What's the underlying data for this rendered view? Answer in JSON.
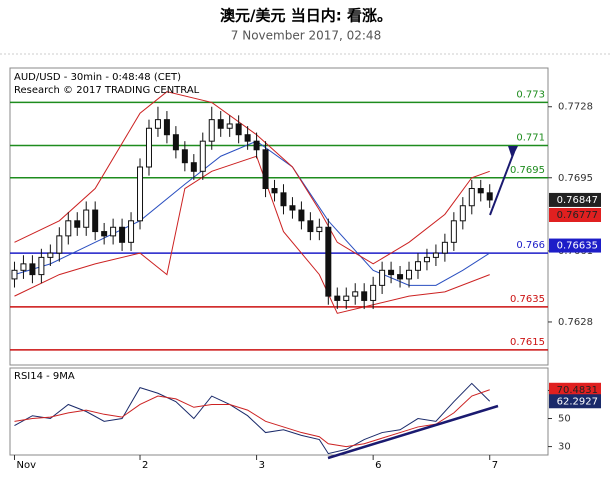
{
  "header": {
    "title": "澳元/美元 当日内: 看涨。",
    "subtitle": "7 November 2017, 02:48"
  },
  "chart_data": [
    {
      "type": "ohlc",
      "title": "AUD/USD - 30min - 0:48:48 (CET)",
      "subtitle": "Research © 2017 TRADING CENTRAL",
      "x": [
        0,
        1,
        2,
        3,
        4,
        5,
        6,
        7,
        8,
        9,
        10,
        11,
        12,
        13,
        14,
        15,
        16,
        17,
        18,
        19,
        20,
        21,
        22,
        23,
        24,
        25,
        26,
        27,
        28,
        29,
        30,
        31,
        32,
        33,
        34,
        35,
        36,
        37,
        38,
        39,
        40,
        41,
        42,
        43,
        44,
        45,
        46,
        47,
        48,
        49,
        50,
        51,
        52,
        53
      ],
      "open": [
        0.7648,
        0.7652,
        0.7655,
        0.765,
        0.7658,
        0.766,
        0.7668,
        0.7675,
        0.7672,
        0.768,
        0.767,
        0.7668,
        0.7672,
        0.7665,
        0.7675,
        0.77,
        0.7718,
        0.7722,
        0.7715,
        0.7708,
        0.7702,
        0.7698,
        0.7712,
        0.7722,
        0.7718,
        0.772,
        0.7715,
        0.7712,
        0.7708,
        0.769,
        0.7688,
        0.7682,
        0.768,
        0.7675,
        0.767,
        0.7672,
        0.764,
        0.7638,
        0.764,
        0.7642,
        0.7638,
        0.7645,
        0.7652,
        0.765,
        0.7648,
        0.7652,
        0.7656,
        0.7658,
        0.766,
        0.7665,
        0.7675,
        0.7682,
        0.769,
        0.7688
      ],
      "high": [
        0.7656,
        0.7659,
        0.7659,
        0.7662,
        0.7664,
        0.7672,
        0.7679,
        0.7679,
        0.7684,
        0.7684,
        0.7674,
        0.7676,
        0.7676,
        0.7679,
        0.7704,
        0.7722,
        0.7728,
        0.7726,
        0.7719,
        0.7712,
        0.7706,
        0.7716,
        0.7728,
        0.7726,
        0.7724,
        0.7724,
        0.7719,
        0.7716,
        0.7712,
        0.7694,
        0.7692,
        0.7686,
        0.7684,
        0.7679,
        0.7676,
        0.7676,
        0.7644,
        0.7644,
        0.7646,
        0.7646,
        0.7649,
        0.7656,
        0.7656,
        0.7654,
        0.7656,
        0.766,
        0.7662,
        0.7664,
        0.7669,
        0.7679,
        0.7686,
        0.7694,
        0.7694,
        0.7692
      ],
      "low": [
        0.7644,
        0.7648,
        0.7646,
        0.7646,
        0.7654,
        0.7656,
        0.7664,
        0.7668,
        0.7668,
        0.7666,
        0.7664,
        0.7664,
        0.7661,
        0.7661,
        0.7671,
        0.7696,
        0.7714,
        0.7711,
        0.7704,
        0.7698,
        0.7694,
        0.7694,
        0.7708,
        0.7714,
        0.7714,
        0.7711,
        0.7708,
        0.7704,
        0.7686,
        0.7684,
        0.7678,
        0.7676,
        0.7671,
        0.7666,
        0.7666,
        0.7636,
        0.7634,
        0.7634,
        0.7636,
        0.7634,
        0.7634,
        0.7641,
        0.7646,
        0.7644,
        0.7644,
        0.7648,
        0.7652,
        0.7654,
        0.7656,
        0.7661,
        0.7671,
        0.7678,
        0.7684,
        0.7681
      ],
      "close": [
        0.7652,
        0.7655,
        0.765,
        0.7658,
        0.766,
        0.7668,
        0.7675,
        0.7672,
        0.768,
        0.767,
        0.7668,
        0.7672,
        0.7665,
        0.7675,
        0.77,
        0.7718,
        0.7722,
        0.7715,
        0.7708,
        0.7702,
        0.7698,
        0.7712,
        0.7722,
        0.7718,
        0.772,
        0.7715,
        0.7712,
        0.7708,
        0.769,
        0.7688,
        0.7682,
        0.768,
        0.7675,
        0.767,
        0.7672,
        0.764,
        0.7638,
        0.764,
        0.7642,
        0.7638,
        0.7645,
        0.7652,
        0.765,
        0.7648,
        0.7652,
        0.7656,
        0.7658,
        0.766,
        0.7665,
        0.7675,
        0.7682,
        0.769,
        0.7688,
        0.76847
      ],
      "lines": [
        {
          "color": "#2a4fc0",
          "x": [
            0,
            4,
            9,
            14,
            19,
            23,
            27,
            31,
            35,
            40,
            44,
            47,
            50,
            53
          ],
          "values": [
            0.765,
            0.7655,
            0.7665,
            0.7675,
            0.7692,
            0.7705,
            0.7712,
            0.77,
            0.7675,
            0.7652,
            0.7645,
            0.7645,
            0.7652,
            0.766
          ]
        },
        {
          "color": "#cc2222",
          "x": [
            0,
            5,
            9,
            14,
            17,
            22,
            27,
            31,
            34,
            36,
            40,
            44,
            48,
            51,
            53
          ],
          "values": [
            0.7665,
            0.7675,
            0.769,
            0.7725,
            0.7735,
            0.773,
            0.7715,
            0.77,
            0.768,
            0.7665,
            0.7655,
            0.7665,
            0.7678,
            0.7695,
            0.7698
          ]
        },
        {
          "color": "#cc2222",
          "x": [
            0,
            5,
            9,
            14,
            17,
            19,
            22,
            27,
            30,
            34,
            36,
            40,
            44,
            48,
            53
          ],
          "values": [
            0.764,
            0.765,
            0.7655,
            0.766,
            0.765,
            0.769,
            0.7698,
            0.7705,
            0.767,
            0.765,
            0.7632,
            0.7636,
            0.764,
            0.7642,
            0.765
          ]
        }
      ],
      "levels": [
        {
          "value": 0.773,
          "color": "#1e8c1e"
        },
        {
          "value": 0.771,
          "color": "#1e8c1e"
        },
        {
          "value": 0.7695,
          "color": "#1e8c1e"
        },
        {
          "value": 0.766,
          "color": "#1d1dc8"
        },
        {
          "value": 0.7635,
          "color": "#cc1111"
        },
        {
          "value": 0.7615,
          "color": "#cc1111"
        }
      ],
      "tags": [
        {
          "value": 0.76847,
          "color": "#222222",
          "text_color": "#ffffff"
        },
        {
          "value": 0.76777,
          "color": "#e02020",
          "text_color": "#222222"
        },
        {
          "value": 0.76635,
          "color": "#1d1dc8",
          "text_color": "#ffffff"
        }
      ],
      "xlim": [
        -0.5,
        59.5
      ],
      "ylim": [
        0.7608,
        0.7746
      ],
      "yticks": [
        0.7728,
        0.7695,
        0.7661,
        0.7628
      ]
    },
    {
      "type": "line",
      "title": "RSI14 - 9MA",
      "series": [
        {
          "color": "#1a2a6a",
          "x": [
            0,
            2,
            4,
            6,
            8,
            10,
            12,
            14,
            16,
            18,
            20,
            22,
            24,
            26,
            28,
            30,
            32,
            34,
            35,
            37,
            39,
            41,
            43,
            45,
            47,
            49,
            51,
            53
          ],
          "values": [
            45,
            52,
            50,
            60,
            55,
            48,
            50,
            72,
            68,
            62,
            50,
            66,
            60,
            52,
            40,
            42,
            38,
            35,
            25,
            28,
            35,
            40,
            42,
            50,
            48,
            62,
            75,
            62.2927
          ]
        },
        {
          "color": "#cc2222",
          "x": [
            0,
            2,
            4,
            6,
            8,
            10,
            12,
            14,
            16,
            18,
            20,
            22,
            24,
            26,
            28,
            30,
            32,
            34,
            35,
            37,
            39,
            41,
            43,
            45,
            47,
            49,
            51,
            53
          ],
          "values": [
            48,
            50,
            51,
            54,
            56,
            53,
            51,
            60,
            66,
            64,
            58,
            60,
            60,
            56,
            48,
            44,
            40,
            37,
            32,
            30,
            32,
            36,
            40,
            44,
            46,
            54,
            66,
            70.4831
          ]
        }
      ],
      "tags": [
        {
          "value": 70.4831,
          "color": "#e02020",
          "text_color": "#222222"
        },
        {
          "value": 62.2927,
          "color": "#1a2a6a",
          "text_color": "#ffffff"
        }
      ],
      "xlim": [
        -0.5,
        59.5
      ],
      "ylim": [
        24,
        86
      ],
      "yticks": [
        70,
        50,
        30
      ],
      "xticks": [
        {
          "value": 0,
          "label": "Nov"
        },
        {
          "value": 14,
          "label": "2"
        },
        {
          "value": 27,
          "label": "3"
        },
        {
          "value": 40,
          "label": "6"
        },
        {
          "value": 53,
          "label": "7"
        }
      ]
    }
  ]
}
